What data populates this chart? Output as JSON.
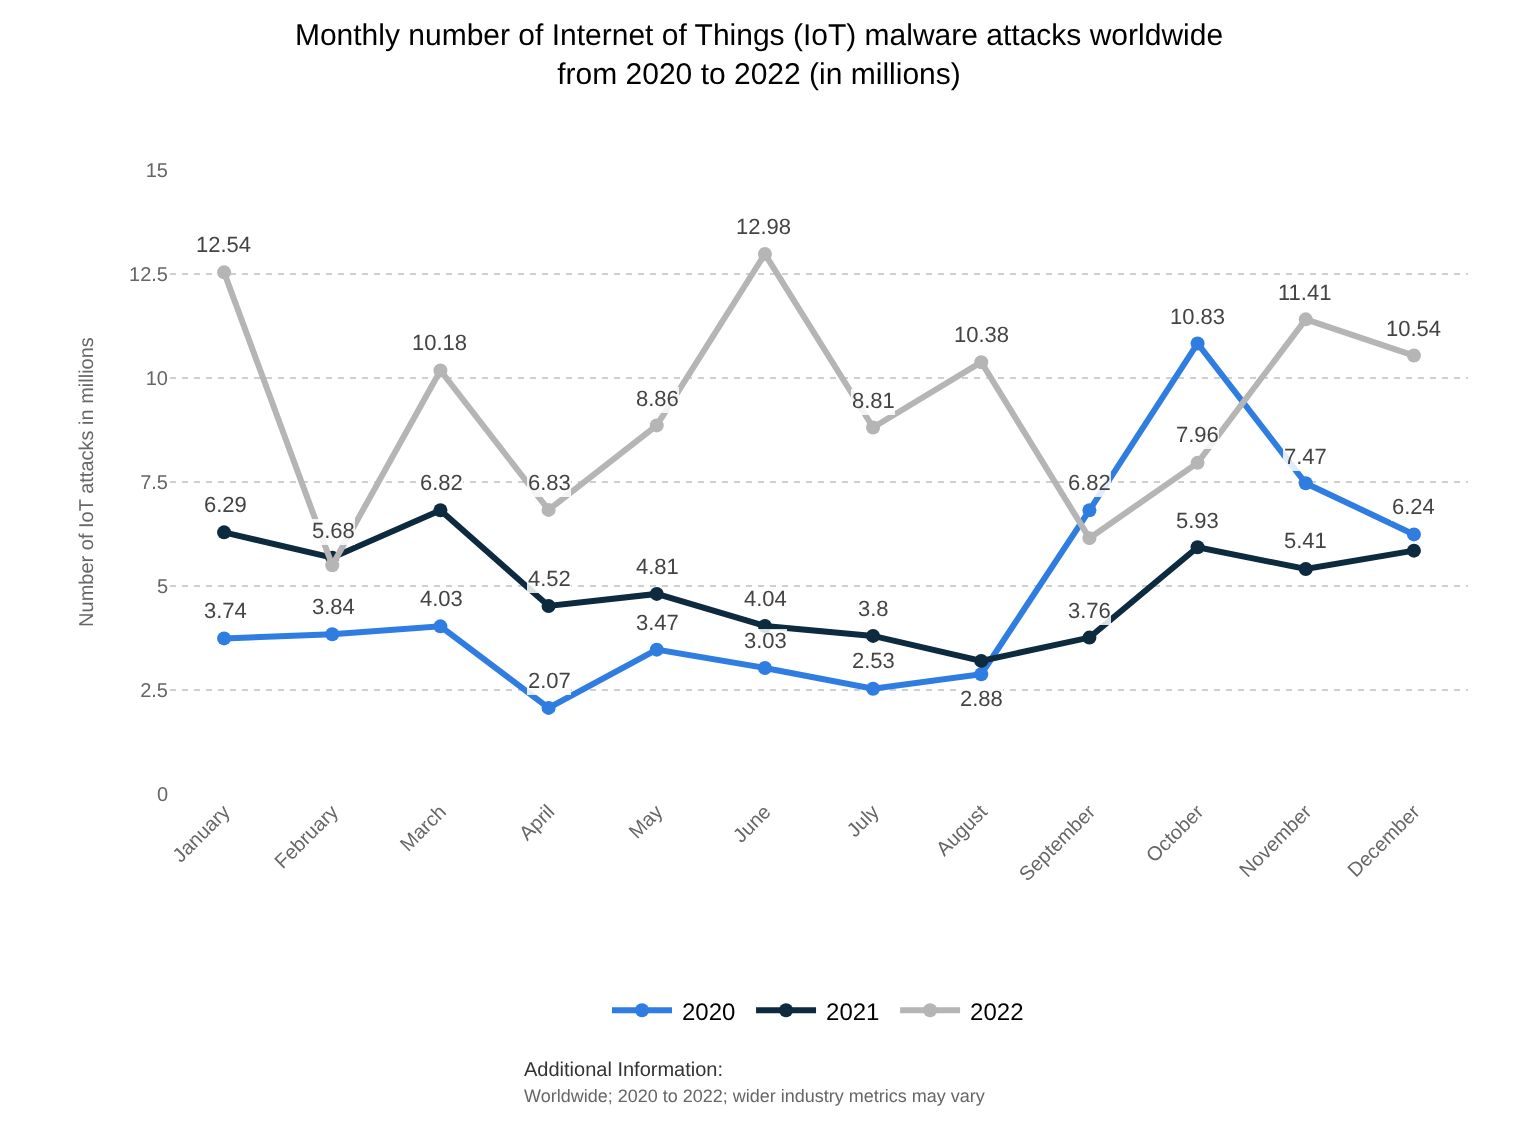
{
  "chart_data": {
    "type": "line",
    "title": "Monthly number of Internet of Things (IoT) malware attacks worldwide from 2020 to 2022 (in millions)",
    "ylabel": "Number of IoT attacks in millions",
    "categories": [
      "January",
      "February",
      "March",
      "April",
      "May",
      "June",
      "July",
      "August",
      "September",
      "October",
      "November",
      "December"
    ],
    "series": [
      {
        "name": "2020",
        "color": "#2f7de1",
        "values": [
          3.74,
          3.84,
          4.03,
          2.07,
          3.47,
          3.03,
          2.53,
          2.88,
          6.82,
          10.83,
          7.47,
          6.24
        ],
        "value_labels": [
          "3.74",
          "3.84",
          "4.03",
          "2.07",
          "3.47",
          "3.03",
          "2.53",
          "2.88",
          "6.82",
          "10.83",
          "7.47",
          "6.24"
        ]
      },
      {
        "name": "2021",
        "color": "#0d2a3e",
        "values": [
          6.29,
          5.68,
          6.82,
          4.52,
          4.81,
          4.04,
          3.8,
          3.2,
          3.76,
          5.93,
          5.41,
          5.85
        ],
        "value_labels": [
          "6.29",
          "5.68",
          "6.82",
          "4.52",
          "4.81",
          "4.04",
          "3.8",
          null,
          "3.76",
          "5.93",
          "5.41",
          null
        ]
      },
      {
        "name": "2022",
        "color": "#b5b5b5",
        "values": [
          12.54,
          5.5,
          10.18,
          6.83,
          8.86,
          12.98,
          8.81,
          10.38,
          6.15,
          7.96,
          11.41,
          10.54
        ],
        "value_labels": [
          "12.54",
          null,
          "10.18",
          "6.83",
          "8.86",
          "12.98",
          "8.81",
          "10.38",
          null,
          "7.96",
          "11.41",
          "10.54"
        ]
      }
    ],
    "ylim": [
      0,
      15
    ],
    "yticks": [
      0,
      2.5,
      5,
      7.5,
      10,
      12.5,
      15
    ],
    "grid": "y",
    "legend": "bottom",
    "marker": "circle",
    "line_style": "solid",
    "annotations": [
      "Additional Information:",
      "Worldwide; 2020 to 2022; wider industry metrics may vary"
    ]
  }
}
